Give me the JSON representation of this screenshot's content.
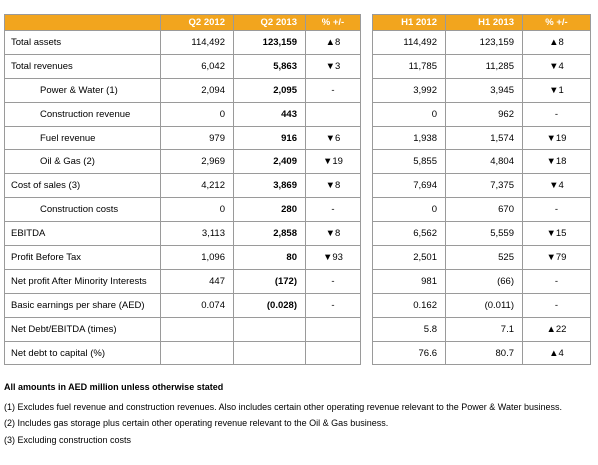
{
  "table": {
    "header": [
      null,
      "Q2 2012",
      "Q2 2013",
      "% +/-",
      "H1 2012",
      "H1 2013",
      "% +/-"
    ],
    "rows": [
      {
        "label": "Total assets",
        "cells": [
          "114,492",
          "123,159",
          "▲8",
          "114,492",
          "123,159",
          "▲8"
        ]
      },
      {
        "label": "Total revenues",
        "cells": [
          "6,042",
          "5,863",
          "▼3",
          "11,785",
          "11,285",
          "▼4"
        ]
      },
      {
        "label": "Power & Water (1)",
        "indent": true,
        "cells": [
          "2,094",
          "2,095",
          "-",
          "3,992",
          "3,945",
          "▼1"
        ]
      },
      {
        "label": "Construction revenue",
        "indent": true,
        "cells": [
          "0",
          "443",
          null,
          "0",
          "962",
          "-"
        ]
      },
      {
        "label": "Fuel revenue",
        "indent": true,
        "cells": [
          "979",
          "916",
          "▼6",
          "1,938",
          "1,574",
          "▼19"
        ]
      },
      {
        "label": "Oil & Gas (2)",
        "indent": true,
        "cells": [
          "2,969",
          "2,409",
          "▼19",
          "5,855",
          "4,804",
          "▼18"
        ]
      },
      {
        "label": "Cost of sales (3)",
        "cells": [
          "4,212",
          "3,869",
          "▼8",
          "7,694",
          "7,375",
          "▼4"
        ]
      },
      {
        "label": "Construction costs",
        "indent": true,
        "cells": [
          "0",
          "280",
          "-",
          "0",
          "670",
          "-"
        ]
      },
      {
        "label": "EBITDA",
        "cells": [
          "3,113",
          "2,858",
          "▼8",
          "6,562",
          "5,559",
          "▼15"
        ]
      },
      {
        "label": "Profit Before Tax",
        "cells": [
          "1,096",
          "80",
          "▼93",
          "2,501",
          "525",
          "▼79"
        ]
      },
      {
        "label": "Net profit After Minority Interests",
        "cells": [
          "447",
          "(172)",
          "-",
          "981",
          "(66)",
          "-"
        ]
      },
      {
        "label": "Basic earnings per share (AED)",
        "cells": [
          "0.074",
          "(0.028)",
          "-",
          "0.162",
          "(0.011)",
          "-"
        ]
      },
      {
        "label": "Net Debt/EBITDA (times)",
        "cells": [
          null,
          null,
          null,
          "5.8",
          "7.1",
          "▲22"
        ]
      },
      {
        "label": "Net debt to capital (%)",
        "cells": [
          null,
          null,
          null,
          "76.6",
          "80.7",
          "▲4"
        ]
      }
    ]
  },
  "notes": {
    "heading": "All amounts in AED million unless otherwise stated",
    "items": [
      "(1) Excludes fuel revenue and construction revenues. Also includes certain other operating revenue relevant to the Power & Water business.",
      "(2) Includes gas storage plus certain other operating revenue relevant to the Oil & Gas business.",
      "(3) Excluding construction costs"
    ]
  }
}
